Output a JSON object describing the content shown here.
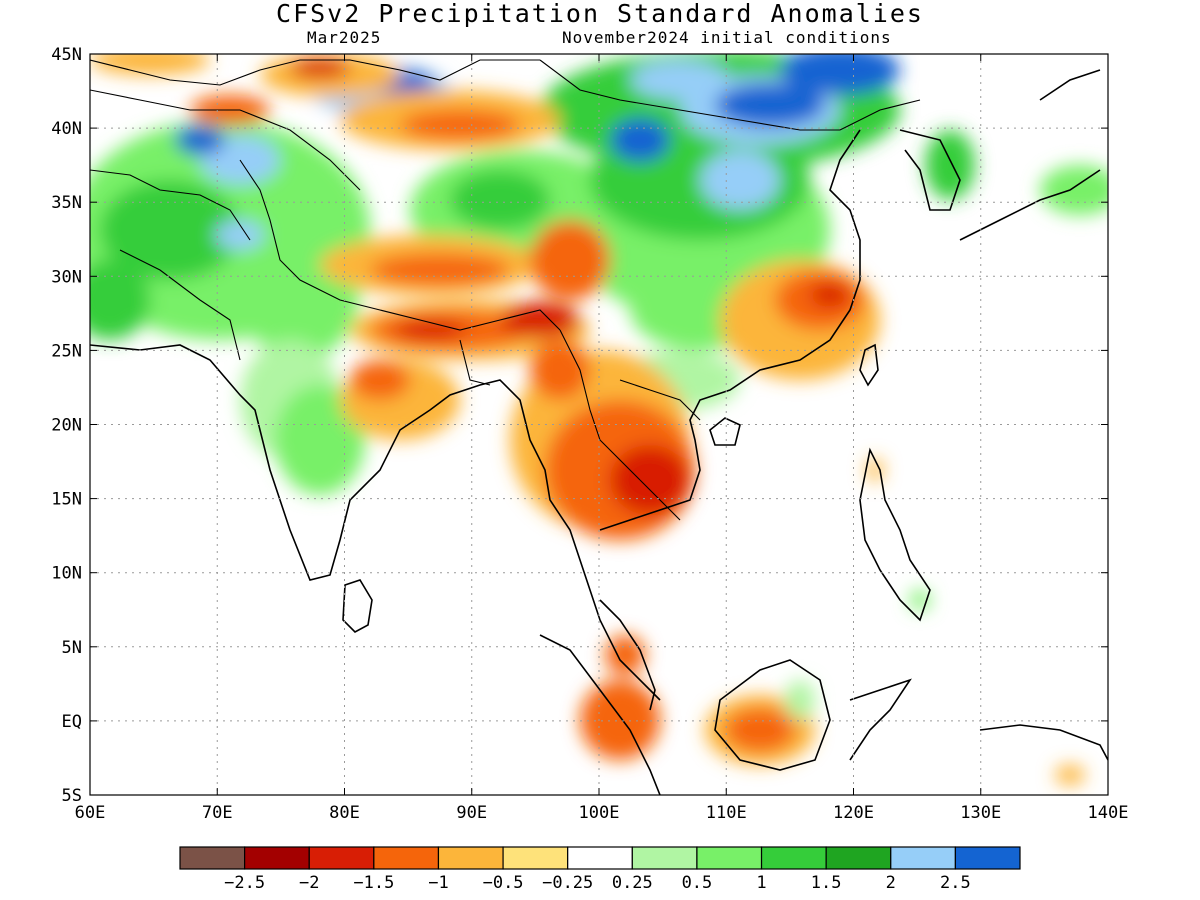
{
  "title": "CFSv2 Precipitation Standard Anomalies",
  "subtitle_left": "Mar2025",
  "subtitle_right": "November2024 initial conditions",
  "map": {
    "lon_range": [
      60,
      140
    ],
    "lat_range": [
      -5,
      45
    ],
    "gridlines": true,
    "lon_ticks": [
      {
        "v": 60,
        "label": "60E"
      },
      {
        "v": 70,
        "label": "70E"
      },
      {
        "v": 80,
        "label": "80E"
      },
      {
        "v": 90,
        "label": "90E"
      },
      {
        "v": 100,
        "label": "100E"
      },
      {
        "v": 110,
        "label": "110E"
      },
      {
        "v": 120,
        "label": "120E"
      },
      {
        "v": 130,
        "label": "130E"
      },
      {
        "v": 140,
        "label": "140E"
      }
    ],
    "lat_ticks": [
      {
        "v": 45,
        "label": "45N"
      },
      {
        "v": 40,
        "label": "40N"
      },
      {
        "v": 35,
        "label": "35N"
      },
      {
        "v": 30,
        "label": "30N"
      },
      {
        "v": 25,
        "label": "25N"
      },
      {
        "v": 20,
        "label": "20N"
      },
      {
        "v": 15,
        "label": "15N"
      },
      {
        "v": 10,
        "label": "10N"
      },
      {
        "v": 5,
        "label": "5N"
      },
      {
        "v": 0,
        "label": "EQ"
      },
      {
        "v": -5,
        "label": "5S"
      }
    ]
  },
  "colorbar": {
    "colors": [
      "#7b5247",
      "#a30000",
      "#d81e05",
      "#f5650b",
      "#fcb53a",
      "#fee27a",
      "#ffffff",
      "#b0f5a3",
      "#78f068",
      "#35cd3a",
      "#1fa521",
      "#96cef8",
      "#1464d2"
    ],
    "labels": [
      "−2.5",
      "−2",
      "−1.5",
      "−1",
      "−0.5",
      "−0.25",
      "0.25",
      "0.5",
      "1",
      "1.5",
      "2",
      "2.5"
    ]
  }
}
